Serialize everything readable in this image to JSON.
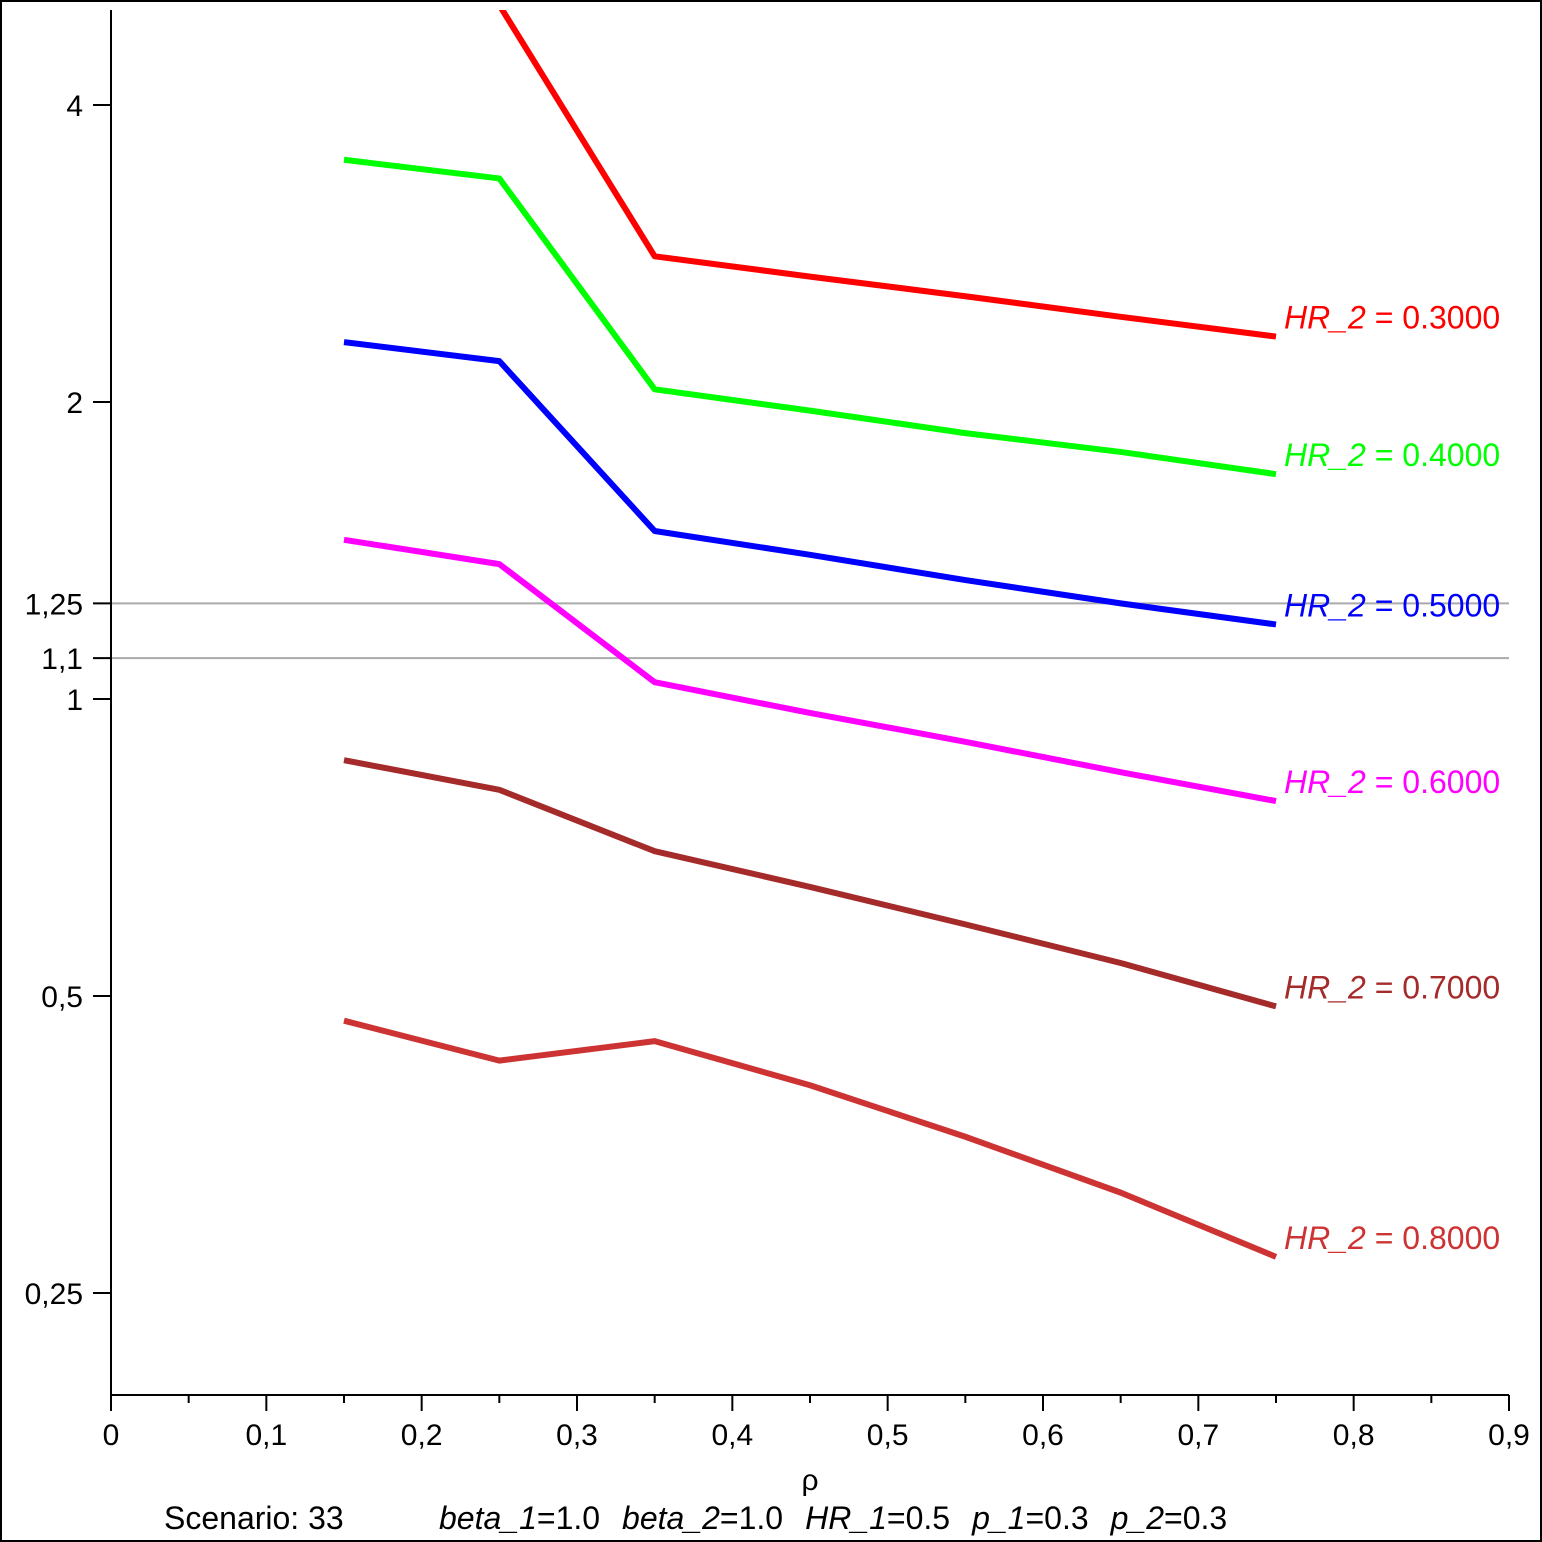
{
  "chart_data": {
    "type": "line",
    "xlabel": "ρ",
    "xlim": [
      0,
      0.9
    ],
    "ylim": [
      0.197,
      5.0
    ],
    "yscale": "log",
    "grid": false,
    "x_ticks": [
      0,
      0.1,
      0.2,
      0.3,
      0.4,
      0.5,
      0.6,
      0.7,
      0.8,
      0.9
    ],
    "x_tick_labels": [
      "0",
      "0,1",
      "0,2",
      "0,3",
      "0,4",
      "0,5",
      "0,6",
      "0,7",
      "0,8",
      "0,9"
    ],
    "y_ticks": [
      0.25,
      0.5,
      1,
      1.1,
      1.25,
      2,
      4
    ],
    "y_tick_labels": [
      "0,25",
      "0,5",
      "1",
      "1,1",
      "1,25",
      "2",
      "4"
    ],
    "reference_lines": [
      {
        "y": 1.25,
        "color": "#aaaaaa"
      },
      {
        "y": 1.1,
        "color": "#aaaaaa"
      }
    ],
    "series": [
      {
        "name": "HR_2",
        "value": "0.3000",
        "color": "#ff0000",
        "x": [
          0.25,
          0.35,
          0.45,
          0.55,
          0.65,
          0.75
        ],
        "y": [
          5.05,
          2.81,
          2.68,
          2.56,
          2.44,
          2.33
        ]
      },
      {
        "name": "HR_2",
        "value": "0.4000",
        "color": "#00ff00",
        "x": [
          0.15,
          0.25,
          0.35,
          0.45,
          0.55,
          0.65,
          0.75
        ],
        "y": [
          3.52,
          3.37,
          2.06,
          1.96,
          1.86,
          1.78,
          1.69
        ]
      },
      {
        "name": "HR_2",
        "value": "0.5000",
        "color": "#0000ff",
        "x": [
          0.15,
          0.25,
          0.35,
          0.45,
          0.55,
          0.65,
          0.75
        ],
        "y": [
          2.3,
          2.2,
          1.48,
          1.4,
          1.32,
          1.25,
          1.19
        ]
      },
      {
        "name": "HR_2",
        "value": "0.6000",
        "color": "#ff00ff",
        "x": [
          0.15,
          0.25,
          0.35,
          0.45,
          0.55,
          0.65,
          0.75
        ],
        "y": [
          1.45,
          1.37,
          1.04,
          0.968,
          0.905,
          0.843,
          0.788
        ]
      },
      {
        "name": "HR_2",
        "value": "0.7000",
        "color": "#a52a2a",
        "x": [
          0.15,
          0.25,
          0.35,
          0.45,
          0.55,
          0.65,
          0.75
        ],
        "y": [
          0.867,
          0.809,
          0.701,
          0.645,
          0.591,
          0.54,
          0.488
        ]
      },
      {
        "name": "HR_2",
        "value": "0.8000",
        "color": "#cd3333",
        "x": [
          0.15,
          0.25,
          0.35,
          0.45,
          0.55,
          0.65,
          0.75
        ],
        "y": [
          0.472,
          0.43,
          0.45,
          0.406,
          0.36,
          0.316,
          0.272
        ]
      }
    ],
    "caption": {
      "scenario": "Scenario: 33",
      "params": [
        {
          "name": "beta_1",
          "value": "1.0"
        },
        {
          "name": "beta_2",
          "value": "1.0"
        },
        {
          "name": "HR_1",
          "value": "0.5"
        },
        {
          "name": "p_1",
          "value": "0.3"
        },
        {
          "name": "p_2",
          "value": "0.3"
        }
      ]
    }
  }
}
